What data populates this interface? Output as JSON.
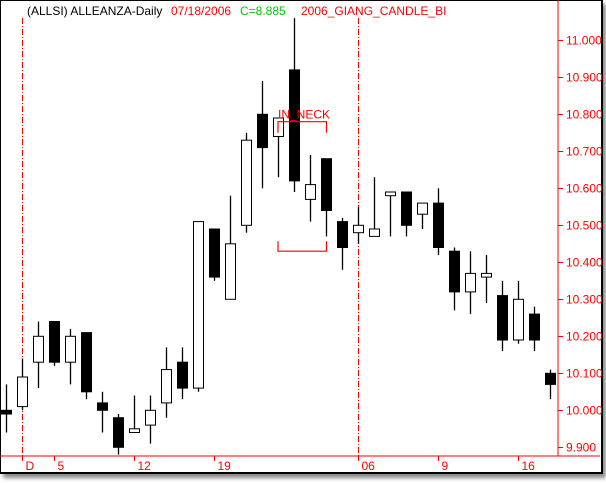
{
  "header": {
    "symbol_title": "(ALLSI) ALLEANZA-Daily",
    "date": "07/18/2006",
    "close": "C=8.885",
    "study": "2006_GIANG_CANDLE_BI"
  },
  "colors": {
    "axis": "#ff0000",
    "title": "#000000",
    "date": "#ff0000",
    "close": "#00cc00",
    "study": "#ff0000",
    "up_body": "#ffffff",
    "down_body": "#000000"
  },
  "chart_data": {
    "type": "candlestick",
    "title": "(ALLSI) ALLEANZA-Daily",
    "ylim": [
      9.88,
      11.07
    ],
    "y_axis_position": "right",
    "y_ticks": [
      "9.900",
      "10.000",
      "10.100",
      "10.200",
      "10.300",
      "10.400",
      "10.500",
      "10.600",
      "10.700",
      "10.800",
      "10.900",
      "11.000"
    ],
    "x_ticks": [
      {
        "index": 1,
        "label": "D",
        "separator": true
      },
      {
        "index": 3,
        "label": "5"
      },
      {
        "index": 8,
        "label": "12"
      },
      {
        "index": 13,
        "label": "19"
      },
      {
        "index": 22,
        "label": "06",
        "separator": true
      },
      {
        "index": 27,
        "label": "9"
      },
      {
        "index": 32,
        "label": "16"
      }
    ],
    "grid": false,
    "candles": [
      {
        "o": 10.0,
        "h": 10.07,
        "l": 9.94,
        "c": 9.99
      },
      {
        "o": 10.01,
        "h": 10.14,
        "l": 10.0,
        "c": 10.09
      },
      {
        "o": 10.13,
        "h": 10.24,
        "l": 10.06,
        "c": 10.2
      },
      {
        "o": 10.24,
        "h": 10.24,
        "l": 10.12,
        "c": 10.13
      },
      {
        "o": 10.13,
        "h": 10.22,
        "l": 10.07,
        "c": 10.2
      },
      {
        "o": 10.21,
        "h": 10.21,
        "l": 10.03,
        "c": 10.05
      },
      {
        "o": 10.02,
        "h": 10.05,
        "l": 9.94,
        "c": 10.0
      },
      {
        "o": 9.98,
        "h": 9.99,
        "l": 9.88,
        "c": 9.9
      },
      {
        "o": 9.94,
        "h": 10.04,
        "l": 9.94,
        "c": 9.95
      },
      {
        "o": 9.96,
        "h": 10.04,
        "l": 9.91,
        "c": 10.0
      },
      {
        "o": 10.02,
        "h": 10.17,
        "l": 9.98,
        "c": 10.11
      },
      {
        "o": 10.13,
        "h": 10.17,
        "l": 10.03,
        "c": 10.06
      },
      {
        "o": 10.06,
        "h": 10.51,
        "l": 10.05,
        "c": 10.51
      },
      {
        "o": 10.49,
        "h": 10.49,
        "l": 10.35,
        "c": 10.36
      },
      {
        "o": 10.3,
        "h": 10.58,
        "l": 10.3,
        "c": 10.45
      },
      {
        "o": 10.5,
        "h": 10.75,
        "l": 10.48,
        "c": 10.73
      },
      {
        "o": 10.8,
        "h": 10.89,
        "l": 10.6,
        "c": 10.71
      },
      {
        "o": 10.74,
        "h": 10.79,
        "l": 10.63,
        "c": 10.79
      },
      {
        "o": 10.92,
        "h": 11.06,
        "l": 10.59,
        "c": 10.62
      },
      {
        "o": 10.57,
        "h": 10.69,
        "l": 10.51,
        "c": 10.61
      },
      {
        "o": 10.68,
        "h": 10.68,
        "l": 10.47,
        "c": 10.54
      },
      {
        "o": 10.51,
        "h": 10.52,
        "l": 10.38,
        "c": 10.44
      },
      {
        "o": 10.48,
        "h": 10.55,
        "l": 10.45,
        "c": 10.5
      },
      {
        "o": 10.47,
        "h": 10.63,
        "l": 10.47,
        "c": 10.49
      },
      {
        "o": 10.58,
        "h": 10.59,
        "l": 10.47,
        "c": 10.59
      },
      {
        "o": 10.59,
        "h": 10.59,
        "l": 10.47,
        "c": 10.5
      },
      {
        "o": 10.53,
        "h": 10.56,
        "l": 10.49,
        "c": 10.56
      },
      {
        "o": 10.56,
        "h": 10.6,
        "l": 10.42,
        "c": 10.44
      },
      {
        "o": 10.43,
        "h": 10.44,
        "l": 10.27,
        "c": 10.32
      },
      {
        "o": 10.32,
        "h": 10.43,
        "l": 10.26,
        "c": 10.37
      },
      {
        "o": 10.36,
        "h": 10.42,
        "l": 10.29,
        "c": 10.37
      },
      {
        "o": 10.31,
        "h": 10.35,
        "l": 10.16,
        "c": 10.19
      },
      {
        "o": 10.19,
        "h": 10.35,
        "l": 10.18,
        "c": 10.3
      },
      {
        "o": 10.26,
        "h": 10.28,
        "l": 10.16,
        "c": 10.19
      },
      {
        "o": 10.1,
        "h": 10.11,
        "l": 10.03,
        "c": 10.07
      }
    ],
    "annotations": [
      {
        "label": "IN_NECK",
        "from_index": 17,
        "to_index": 20,
        "top_price": 10.78,
        "bottom_price": 10.43
      }
    ]
  }
}
